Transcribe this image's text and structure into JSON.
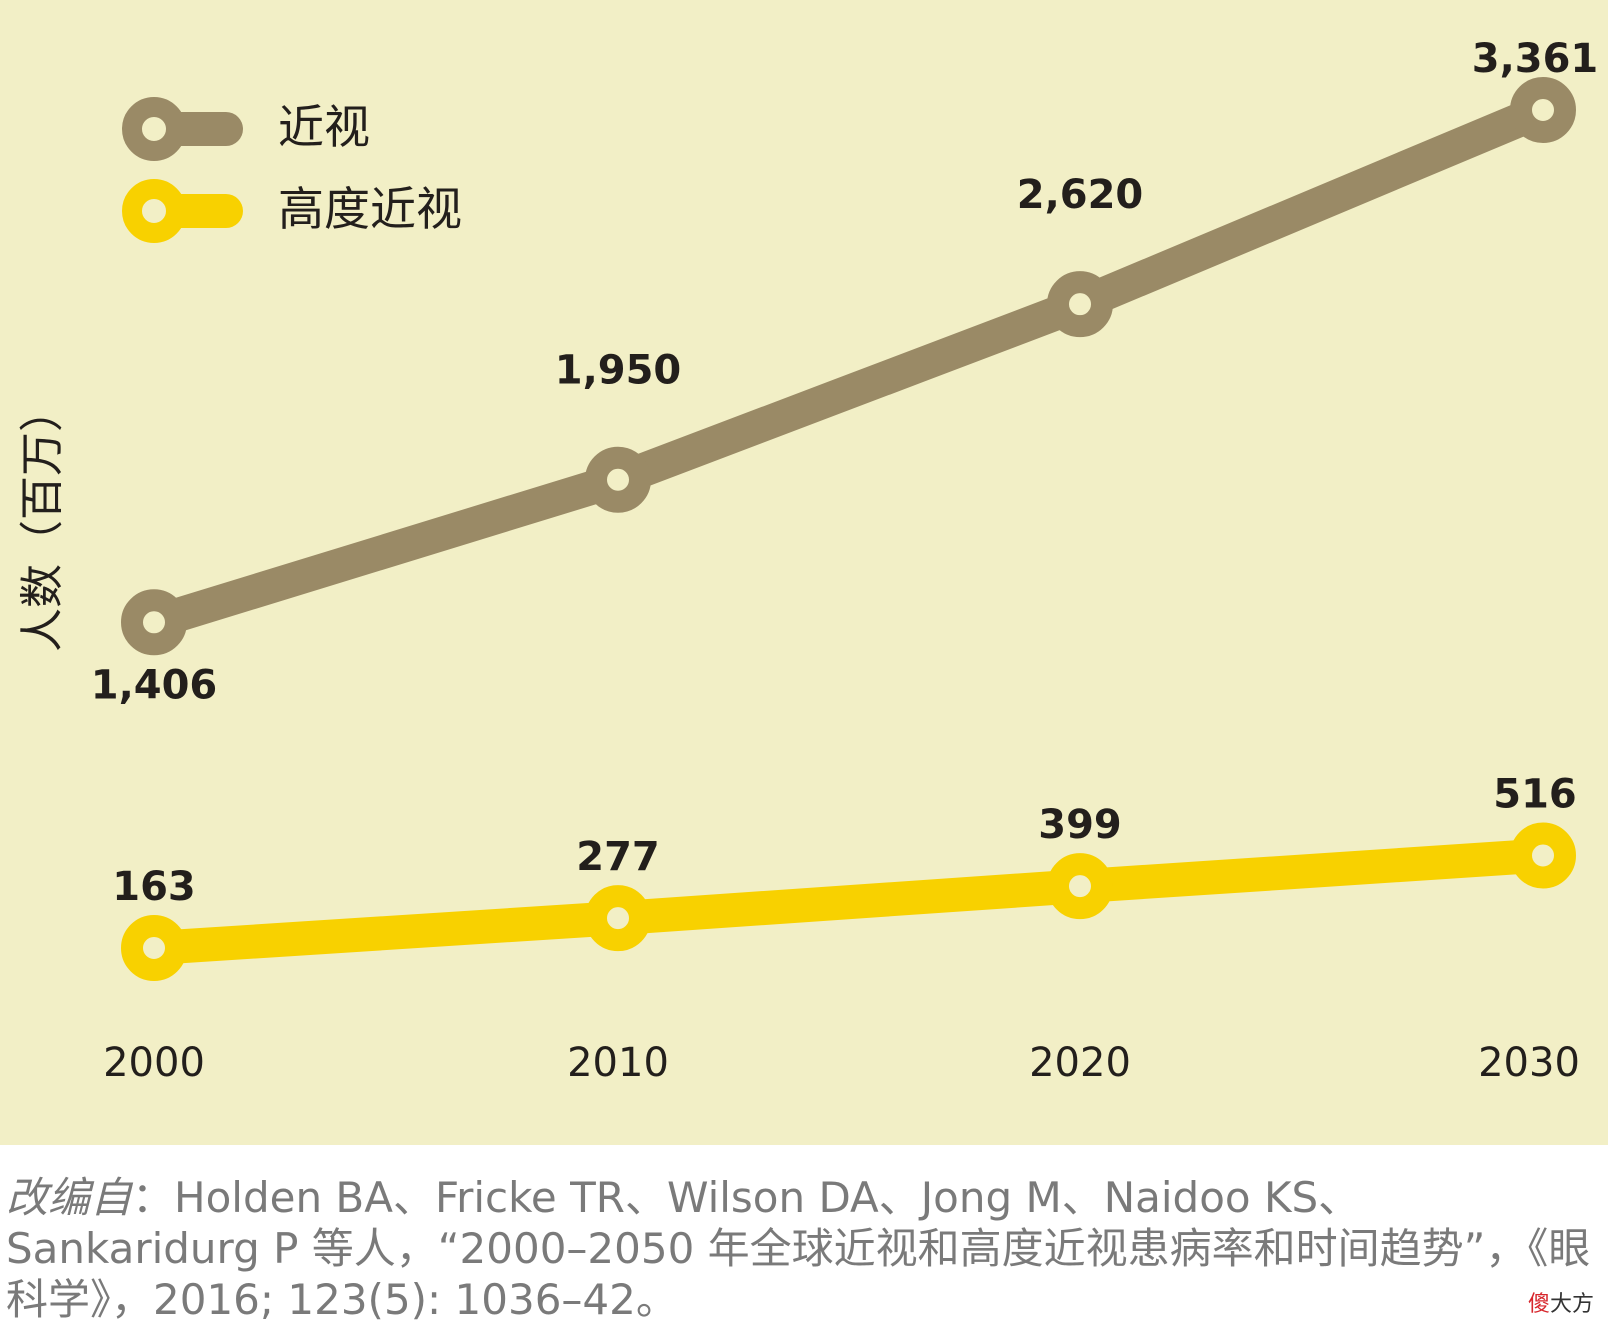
{
  "chart_data": {
    "type": "line",
    "x": [
      "2000",
      "2010",
      "2020",
      "2030"
    ],
    "ylabel": "人数（百万）",
    "series": [
      {
        "name": "近视",
        "values": [
          1406,
          1950,
          2620,
          3361
        ],
        "labels": [
          "1,406",
          "1,950",
          "2,620",
          "3,361"
        ],
        "color": "#9a8a66"
      },
      {
        "name": "高度近视",
        "values": [
          163,
          277,
          399,
          516
        ],
        "labels": [
          "163",
          "277",
          "399",
          "516"
        ],
        "color": "#f8d100"
      }
    ],
    "legend_position": "top-left",
    "grid": false
  },
  "colors": {
    "background": "#f2efc6",
    "text": "#231f1c",
    "caption": "#7a7a7a"
  },
  "caption": {
    "prefix": "改编自",
    "text": "：Holden BA、Fricke TR、Wilson DA、Jong M、Naidoo KS、Sankaridurg P 等人，“2000–2050 年全球近视和高度近视患病率和时间趋势”，《眼科学》，2016; 123(5): 1036–42。"
  },
  "watermark": {
    "part1": "傻",
    "part2": "大方"
  }
}
